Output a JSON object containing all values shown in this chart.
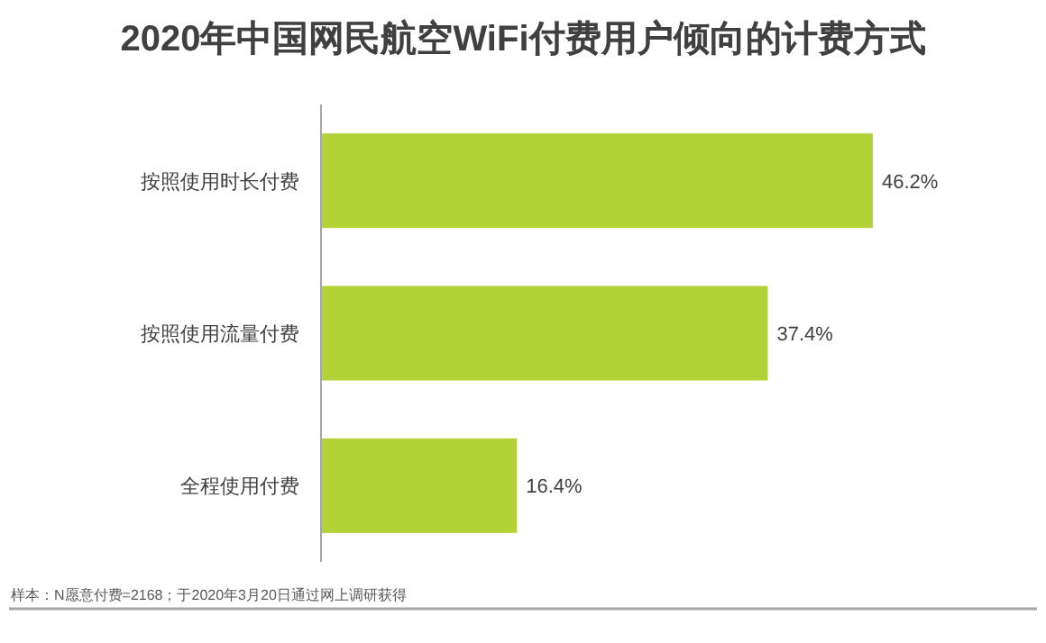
{
  "chart_data": {
    "type": "bar",
    "orientation": "horizontal",
    "title": "2020年中国网民航空WiFi付费用户倾向的计费方式",
    "categories": [
      "按照使用时长付费",
      "按照使用流量付费",
      "全程使用付费"
    ],
    "values": [
      46.2,
      37.4,
      16.4
    ],
    "value_labels": [
      "46.2%",
      "37.4%",
      "16.4%"
    ],
    "color": "#b3d235",
    "annotations": [
      "样本：N愿意付费=2168；于2020年3月20日通过网上调研获得"
    ]
  }
}
